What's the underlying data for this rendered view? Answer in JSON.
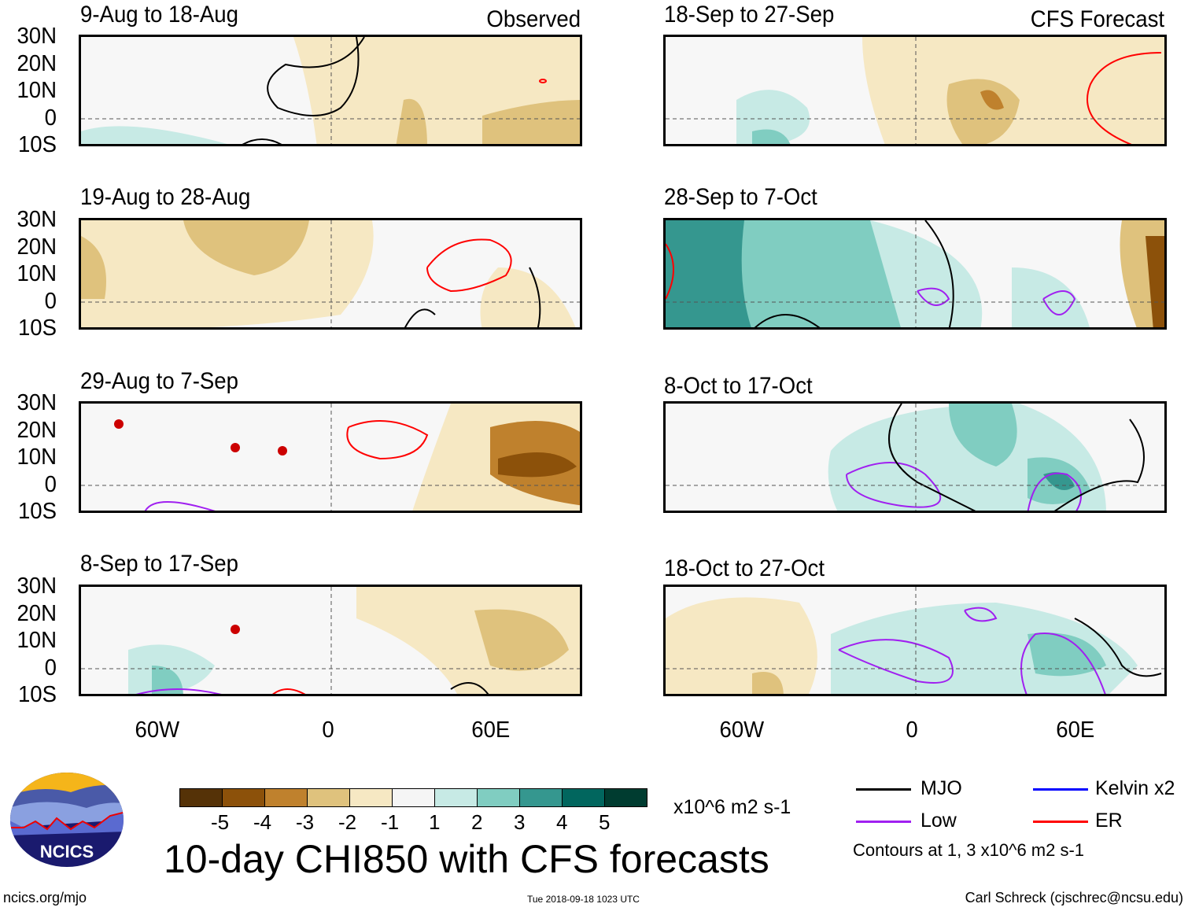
{
  "observed_label": "Observed",
  "forecast_label": "CFS Forecast",
  "panels_left": [
    {
      "title": "9-Aug to 18-Aug"
    },
    {
      "title": "19-Aug to 28-Aug"
    },
    {
      "title": "29-Aug to 7-Sep"
    },
    {
      "title": "8-Sep to 17-Sep"
    }
  ],
  "panels_right": [
    {
      "title": "18-Sep to 27-Sep"
    },
    {
      "title": "28-Sep to 7-Oct"
    },
    {
      "title": "8-Oct to 17-Oct"
    },
    {
      "title": "18-Oct to 27-Oct"
    }
  ],
  "lat_ticks": [
    "30N",
    "20N",
    "10N",
    "0",
    "10S"
  ],
  "lon_ticks": [
    "60W",
    "0",
    "60E"
  ],
  "colorbar": {
    "colors": [
      "#553207",
      "#8c510a",
      "#bf812d",
      "#dfc27d",
      "#f6e8c3",
      "#f5f5f5",
      "#c7eae5",
      "#80cdc1",
      "#35978f",
      "#01665e",
      "#003c30"
    ],
    "labels": [
      "-5",
      "-4",
      "-3",
      "-2",
      "-1",
      "1",
      "2",
      "3",
      "4",
      "5"
    ],
    "units": "x10^6 m2 s-1"
  },
  "title": "10-day CHI850 with CFS forecasts",
  "legend": {
    "items": [
      {
        "label": "MJO",
        "color": "#000000"
      },
      {
        "label": "Kelvin x2",
        "color": "#0000ff"
      },
      {
        "label": "Low",
        "color": "#a020f0"
      },
      {
        "label": "ER",
        "color": "#ff0000"
      }
    ],
    "note": "Contours at 1, 3 x10^6 m2 s-1"
  },
  "footer": {
    "url": "ncics.org/mjo",
    "timestamp": "Tue 2018-09-18 1023 UTC",
    "credit": "Carl Schreck (cjschrec@ncsu.edu)"
  },
  "logo": {
    "text": "NCICS"
  }
}
